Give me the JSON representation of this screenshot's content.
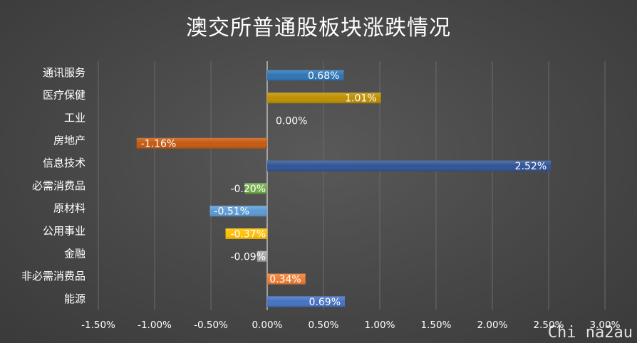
{
  "chart_data": {
    "type": "bar",
    "orientation": "horizontal",
    "title": "澳交所普通股板块涨跌情况",
    "categories": [
      "通讯服务",
      "医疗保健",
      "工业",
      "房地产",
      "信息技术",
      "必需消费品",
      "原材料",
      "公用事业",
      "金融",
      "非必需消费品",
      "能源"
    ],
    "values": [
      0.68,
      1.01,
      0.0,
      -1.16,
      2.52,
      -0.2,
      -0.51,
      -0.37,
      -0.09,
      0.34,
      0.69
    ],
    "value_labels": [
      "0.68%",
      "1.01%",
      "0.00%",
      "-1.16%",
      "2.52%",
      "-0.20%",
      "-0.51%",
      "-0.37%",
      "-0.09%",
      "0.34%",
      "0.69%"
    ],
    "bar_colors": [
      "#2e75b6",
      "#bf8f00",
      "#a5a5a5",
      "#c55a11",
      "#2f5597",
      "#70ad47",
      "#5b9bd5",
      "#ffc000",
      "#a5a5a5",
      "#ed7d31",
      "#4472c4"
    ],
    "xlim": [
      -1.5,
      3.0
    ],
    "xticks": [
      -1.5,
      -1.0,
      -0.5,
      0.0,
      0.5,
      1.0,
      1.5,
      2.0,
      2.5,
      3.0
    ],
    "xtick_labels": [
      "-1.50%",
      "-1.00%",
      "-0.50%",
      "0.00%",
      "0.50%",
      "1.00%",
      "1.50%",
      "2.00%",
      "2.50%",
      "3.00%"
    ],
    "grid": true,
    "legend": "none",
    "xlabel": "",
    "ylabel": ""
  },
  "watermark": "Chi na2au"
}
